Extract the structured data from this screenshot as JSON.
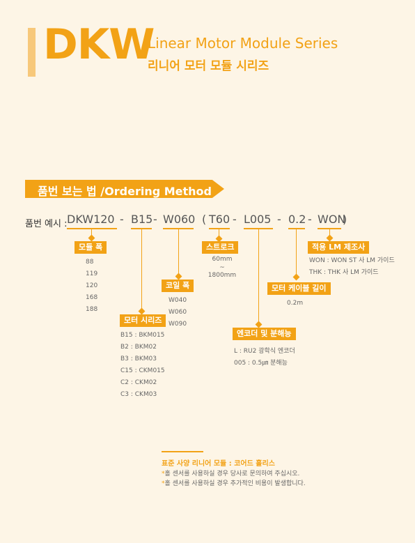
{
  "header": {
    "model": "DKW",
    "title_en": "Linear Motor Module Series",
    "title_ko": "리니어 모터 모듈 시리즈"
  },
  "section": {
    "title": "품번 보는 법 /Ordering Method"
  },
  "code": {
    "label": "품번 예시 :",
    "parts": [
      "DKW120",
      "-",
      "B15",
      "-",
      "W060",
      "(",
      "T60",
      "-",
      "L005",
      "-",
      "0.2",
      "-",
      "WON",
      ")"
    ]
  },
  "groups": {
    "width": {
      "tag": "모듈 폭",
      "values": [
        "88",
        "119",
        "120",
        "168",
        "188"
      ]
    },
    "series": {
      "tag": "모터 시리즈",
      "values": [
        "B15 : BKM015",
        "B2 : BKM02",
        "B3 : BKM03",
        "C15 : CKM015",
        "C2 : CKM02",
        "C3 : CKM03"
      ]
    },
    "coil": {
      "tag": "코일 폭",
      "values": [
        "W040",
        "W060",
        "W090"
      ]
    },
    "stroke": {
      "tag": "스트로크",
      "values": [
        "60mm",
        "~",
        "1800mm"
      ]
    },
    "encoder": {
      "tag": "엔코더 및 분해능",
      "values": [
        "L : RU2 광학식 엔코더",
        "005 : 0.5㎛ 분해능"
      ]
    },
    "cable": {
      "tag": "모터 케이블 길이",
      "values": [
        "0.2m"
      ]
    },
    "lm": {
      "tag": "적용 LM 제조사",
      "values": [
        "WON : WON ST 사 LM 가이드",
        "THK : THK 사 LM 가이드"
      ]
    }
  },
  "footer": {
    "title": "표준 사양 리니어 모듈 : 코어드 홀리스",
    "notes": [
      "홀 센서를 사용하실 경우 당사로 문의하여 주십시오.",
      "홀 센서를 사용하실 경우 추가적인 비용이 발생합니다."
    ]
  }
}
